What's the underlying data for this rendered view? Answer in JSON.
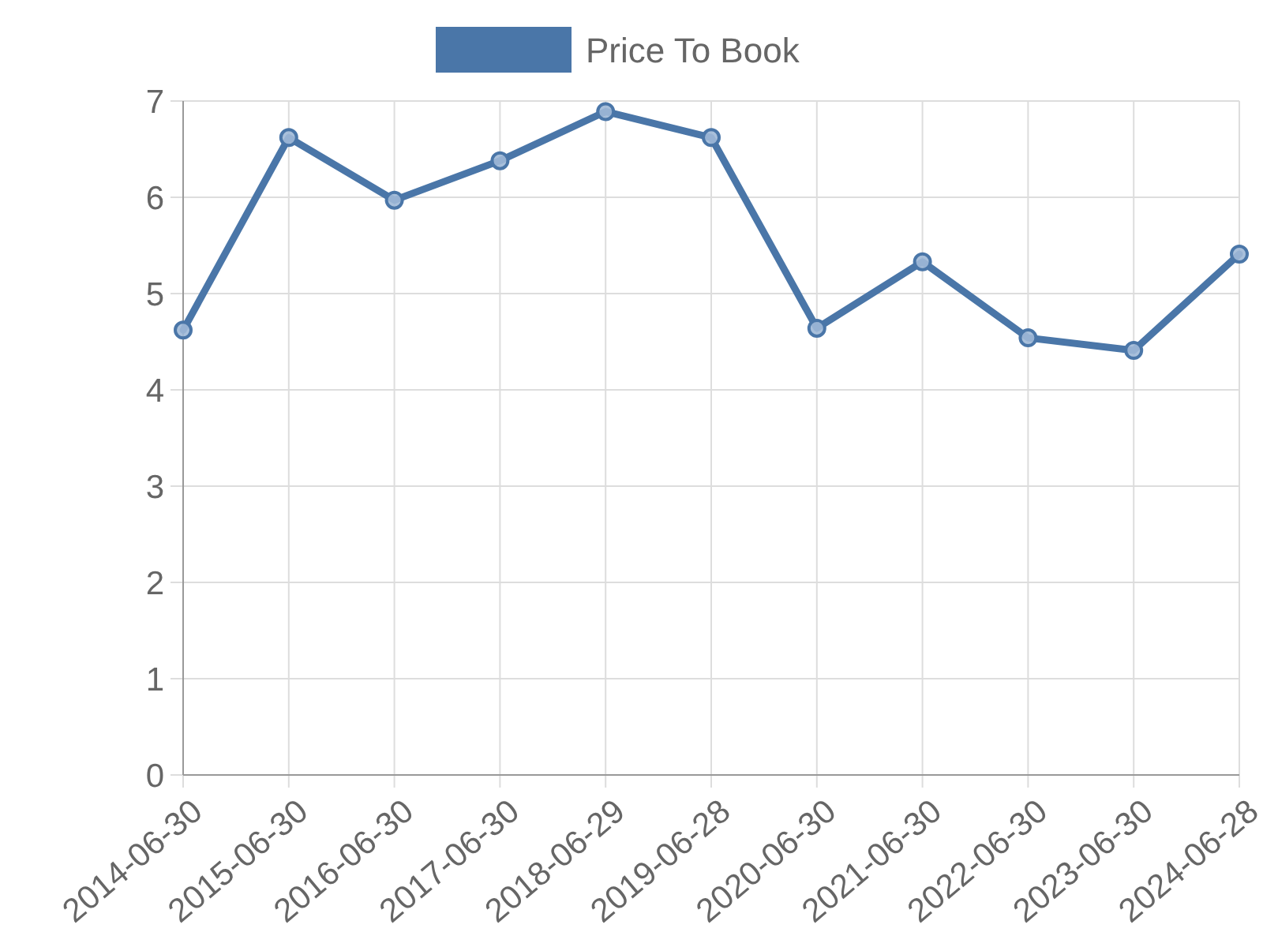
{
  "chart_data": {
    "type": "line",
    "categories": [
      "2014-06-30",
      "2015-06-30",
      "2016-06-30",
      "2017-06-30",
      "2018-06-29",
      "2019-06-28",
      "2020-06-30",
      "2021-06-30",
      "2022-06-30",
      "2023-06-30",
      "2024-06-28"
    ],
    "series": [
      {
        "name": "Price To Book",
        "color": "#4a76a8",
        "values": [
          4.62,
          6.62,
          5.97,
          6.38,
          6.89,
          6.62,
          4.64,
          5.33,
          4.54,
          4.41,
          5.41
        ]
      }
    ],
    "ylim": [
      0,
      7
    ],
    "yticks": [
      0,
      1,
      2,
      3,
      4,
      5,
      6,
      7
    ],
    "grid": true,
    "legend": "top",
    "marker": "circle",
    "line_style": "solid"
  }
}
